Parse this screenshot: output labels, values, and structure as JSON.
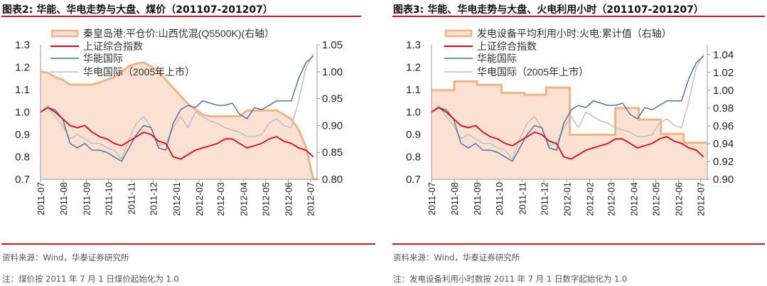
{
  "colors": {
    "fill": "#fbe1d1",
    "fill_stroke": "#f2b486",
    "sse": "#e3051b",
    "huaneng": "#3f70a8",
    "huadian": "#bdbdbd",
    "rule": "#c8161d"
  },
  "chart_data": [
    {
      "type": "line",
      "title": "图表2:  华能、华电走势与大盘、煤价（201107-201207）",
      "source": "资料来源：Wind，华泰证券研究所",
      "note": "注：煤价按 2011 年 7 月 1 日煤价起始化为 1.0",
      "x_ticks": [
        "2011-07",
        "2011-08",
        "2011-09",
        "2011-10",
        "2011-11",
        "2011-12",
        "2012-01",
        "2012-02",
        "2012-03",
        "2012-04",
        "2012-05",
        "2012-06",
        "2012-07"
      ],
      "xlim": [
        "2011-07-01",
        "2012-07-10"
      ],
      "ylim_left": [
        0.7,
        1.3
      ],
      "y_ticks_left": [
        "0.7",
        "0.8",
        "0.9",
        "1.0",
        "1.1",
        "1.2",
        "1.3"
      ],
      "ylim_right": [
        0.8,
        1.05
      ],
      "y_ticks_right": [
        "0.80",
        "0.85",
        "0.90",
        "0.95",
        "1.00",
        "1.05"
      ],
      "legend": [
        "秦皇岛港:平仓价:山西优混(Q5500K)(右轴）",
        "上证综合指数",
        "华能国际",
        "华电国际（2005年上市）"
      ],
      "area_series": {
        "name": "秦皇岛港:平仓价:山西优混(Q5500K)(右轴）",
        "axis": "right",
        "step": false,
        "x": [
          "2011-07-01",
          "2011-07-11",
          "2011-07-21",
          "2011-07-31",
          "2011-08-10",
          "2011-08-20",
          "2011-08-30",
          "2011-09-09",
          "2011-09-19",
          "2011-09-29",
          "2011-10-09",
          "2011-10-19",
          "2011-10-29",
          "2011-11-08",
          "2011-11-18",
          "2011-11-28",
          "2011-12-08",
          "2011-12-18",
          "2011-12-28",
          "2012-01-07",
          "2012-01-17",
          "2012-01-27",
          "2012-02-06",
          "2012-02-16",
          "2012-02-26",
          "2012-03-07",
          "2012-03-17",
          "2012-03-27",
          "2012-04-06",
          "2012-04-16",
          "2012-04-26",
          "2012-05-06",
          "2012-05-16",
          "2012-05-26",
          "2012-06-05",
          "2012-06-15",
          "2012-06-25",
          "2012-07-05"
        ],
        "values": [
          1.0,
          0.998,
          0.99,
          0.985,
          0.976,
          0.976,
          0.976,
          0.976,
          0.98,
          0.985,
          0.99,
          1.0,
          1.01,
          1.015,
          1.017,
          1.01,
          1.0,
          0.985,
          0.97,
          0.955,
          0.94,
          0.93,
          0.92,
          0.917,
          0.917,
          0.917,
          0.917,
          0.917,
          0.928,
          0.928,
          0.928,
          0.928,
          0.928,
          0.92,
          0.912,
          0.893,
          0.86,
          0.8
        ]
      },
      "dates": [
        "2011-07-01",
        "2011-07-11",
        "2011-07-21",
        "2011-07-31",
        "2011-08-10",
        "2011-08-20",
        "2011-08-30",
        "2011-09-09",
        "2011-09-19",
        "2011-09-29",
        "2011-10-09",
        "2011-10-19",
        "2011-10-29",
        "2011-11-08",
        "2011-11-18",
        "2011-11-28",
        "2011-12-08",
        "2011-12-18",
        "2011-12-28",
        "2012-01-07",
        "2012-01-17",
        "2012-01-27",
        "2012-02-06",
        "2012-02-16",
        "2012-02-26",
        "2012-03-07",
        "2012-03-17",
        "2012-03-27",
        "2012-04-06",
        "2012-04-16",
        "2012-04-26",
        "2012-05-06",
        "2012-05-16",
        "2012-05-26",
        "2012-06-05",
        "2012-06-15",
        "2012-06-25",
        "2012-07-05"
      ],
      "series": [
        {
          "name": "上证综合指数",
          "axis": "left",
          "values": [
            1.0,
            1.02,
            1.0,
            0.97,
            0.94,
            0.93,
            0.94,
            0.91,
            0.89,
            0.88,
            0.86,
            0.85,
            0.87,
            0.89,
            0.91,
            0.9,
            0.87,
            0.86,
            0.8,
            0.79,
            0.81,
            0.83,
            0.84,
            0.85,
            0.86,
            0.88,
            0.88,
            0.86,
            0.84,
            0.85,
            0.86,
            0.88,
            0.89,
            0.87,
            0.86,
            0.84,
            0.83,
            0.8
          ]
        },
        {
          "name": "华能国际",
          "axis": "left",
          "values": [
            1.0,
            1.02,
            1.01,
            0.97,
            0.86,
            0.84,
            0.86,
            0.83,
            0.83,
            0.82,
            0.8,
            0.78,
            0.84,
            0.9,
            0.94,
            0.93,
            0.84,
            0.83,
            0.95,
            1.01,
            1.03,
            1.02,
            1.05,
            1.04,
            1.03,
            1.03,
            1.04,
            0.99,
            0.97,
            1.02,
            1.01,
            1.03,
            1.05,
            1.05,
            1.05,
            1.15,
            1.22,
            1.25
          ]
        },
        {
          "name": "华电国际（2005年上市）",
          "axis": "left",
          "values": [
            1.0,
            1.03,
            0.98,
            0.94,
            0.88,
            0.9,
            0.88,
            0.86,
            0.86,
            0.84,
            0.83,
            0.79,
            0.88,
            0.95,
            0.98,
            0.93,
            0.85,
            0.86,
            0.93,
            0.98,
            0.93,
            1.0,
            0.98,
            0.96,
            0.95,
            0.93,
            0.92,
            0.91,
            0.89,
            0.89,
            0.9,
            0.95,
            0.97,
            0.94,
            0.93,
            1.05,
            1.2,
            1.26
          ]
        }
      ]
    },
    {
      "type": "line",
      "title": "图表3:  华能、华电走势与大盘、火电利用小时（201107-201207）",
      "source": "资料来源：Wind，华泰证券研究所",
      "note": "注：发电设备利用小时数按 2011 年 7 月 1 日数字起始化为 1.0",
      "x_ticks": [
        "2011-07",
        "2011-08",
        "2011-09",
        "2011-10",
        "2011-11",
        "2011-12",
        "2012-01",
        "2012-02",
        "2012-03",
        "2012-04",
        "2012-05",
        "2012-06",
        "2012-07"
      ],
      "xlim": [
        "2011-07-01",
        "2012-07-10"
      ],
      "ylim_left": [
        0.7,
        1.3
      ],
      "y_ticks_left": [
        "0.7",
        "0.8",
        "0.9",
        "1.0",
        "1.1",
        "1.2",
        "1.3"
      ],
      "ylim_right": [
        0.9,
        1.051
      ],
      "y_ticks_right": [
        "0.90",
        "0.92",
        "0.94",
        "0.96",
        "0.98",
        "1.00",
        "1.02",
        "1.04"
      ],
      "legend": [
        "发电设备平均利用小时:火电:累计值（右轴）",
        "上证综合指数",
        "华能国际",
        "华电国际（2005年上市）"
      ],
      "area_series": {
        "name": "发电设备平均利用小时:火电:累计值（右轴）",
        "axis": "right",
        "step": true,
        "x": [
          "2011-07-01",
          "2011-08-01",
          "2011-09-01",
          "2011-10-04",
          "2011-11-04",
          "2011-12-04",
          "2012-01-05",
          "2012-03-07",
          "2012-04-08",
          "2012-05-08",
          "2012-06-08",
          "2012-07-10"
        ],
        "values": [
          1.0,
          1.01,
          1.006,
          0.997,
          0.995,
          1.003,
          0.95,
          0.98,
          0.967,
          0.951,
          0.941,
          0.941
        ]
      },
      "dates": [
        "2011-07-01",
        "2011-07-11",
        "2011-07-21",
        "2011-07-31",
        "2011-08-10",
        "2011-08-20",
        "2011-08-30",
        "2011-09-09",
        "2011-09-19",
        "2011-09-29",
        "2011-10-09",
        "2011-10-19",
        "2011-10-29",
        "2011-11-08",
        "2011-11-18",
        "2011-11-28",
        "2011-12-08",
        "2011-12-18",
        "2011-12-28",
        "2012-01-07",
        "2012-01-17",
        "2012-01-27",
        "2012-02-06",
        "2012-02-16",
        "2012-02-26",
        "2012-03-07",
        "2012-03-17",
        "2012-03-27",
        "2012-04-06",
        "2012-04-16",
        "2012-04-26",
        "2012-05-06",
        "2012-05-16",
        "2012-05-26",
        "2012-06-05",
        "2012-06-15",
        "2012-06-25",
        "2012-07-05"
      ],
      "series": [
        {
          "name": "上证综合指数",
          "axis": "left",
          "values": [
            1.0,
            1.02,
            1.0,
            0.97,
            0.94,
            0.93,
            0.94,
            0.91,
            0.89,
            0.88,
            0.86,
            0.85,
            0.87,
            0.89,
            0.91,
            0.9,
            0.87,
            0.86,
            0.8,
            0.79,
            0.81,
            0.83,
            0.84,
            0.85,
            0.86,
            0.88,
            0.88,
            0.86,
            0.84,
            0.85,
            0.86,
            0.88,
            0.89,
            0.87,
            0.86,
            0.84,
            0.83,
            0.8
          ]
        },
        {
          "name": "华能国际",
          "axis": "left",
          "values": [
            1.0,
            1.02,
            1.01,
            0.97,
            0.86,
            0.84,
            0.86,
            0.83,
            0.83,
            0.82,
            0.8,
            0.78,
            0.84,
            0.9,
            0.94,
            0.93,
            0.84,
            0.83,
            0.95,
            1.01,
            1.03,
            1.02,
            1.05,
            1.04,
            1.03,
            1.03,
            1.04,
            0.99,
            0.97,
            1.02,
            1.01,
            1.03,
            1.05,
            1.05,
            1.05,
            1.15,
            1.22,
            1.25
          ]
        },
        {
          "name": "华电国际（2005年上市）",
          "axis": "left",
          "values": [
            1.0,
            1.03,
            0.98,
            0.94,
            0.88,
            0.9,
            0.88,
            0.86,
            0.86,
            0.84,
            0.83,
            0.79,
            0.88,
            0.95,
            0.98,
            0.93,
            0.85,
            0.86,
            0.93,
            0.98,
            0.93,
            1.0,
            0.98,
            0.96,
            0.95,
            0.93,
            0.92,
            0.91,
            0.89,
            0.89,
            0.9,
            0.95,
            0.97,
            0.94,
            0.93,
            1.05,
            1.2,
            1.26
          ]
        }
      ]
    }
  ]
}
